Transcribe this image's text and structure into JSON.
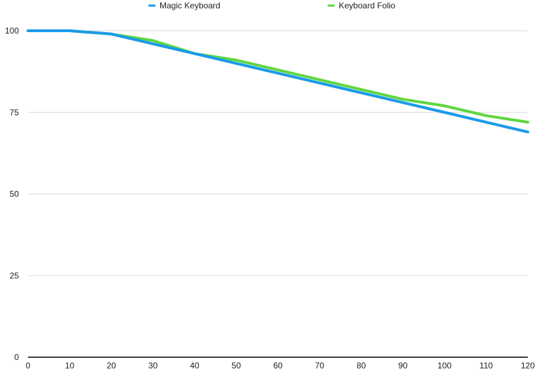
{
  "chart_data": {
    "type": "line",
    "title": "",
    "xlabel": "",
    "ylabel": "",
    "x": [
      0,
      10,
      20,
      30,
      40,
      50,
      60,
      70,
      80,
      90,
      100,
      110,
      120
    ],
    "xlim": [
      0,
      120
    ],
    "ylim": [
      0,
      100
    ],
    "x_ticks": [
      0,
      10,
      20,
      30,
      40,
      50,
      60,
      70,
      80,
      90,
      100,
      110,
      120
    ],
    "y_ticks": [
      0,
      25,
      50,
      75,
      100
    ],
    "grid": true,
    "legend_position": "top",
    "series": [
      {
        "name": "Magic Keyboard",
        "color": "#1a9be8",
        "values": [
          100,
          100,
          99,
          96,
          93,
          90,
          87,
          84,
          81,
          78,
          75,
          72,
          69
        ]
      },
      {
        "name": "Keyboard Folio",
        "color": "#5fd642",
        "values": [
          100,
          100,
          99,
          97,
          93,
          91,
          88,
          85,
          82,
          79,
          77,
          74,
          72
        ]
      }
    ]
  }
}
